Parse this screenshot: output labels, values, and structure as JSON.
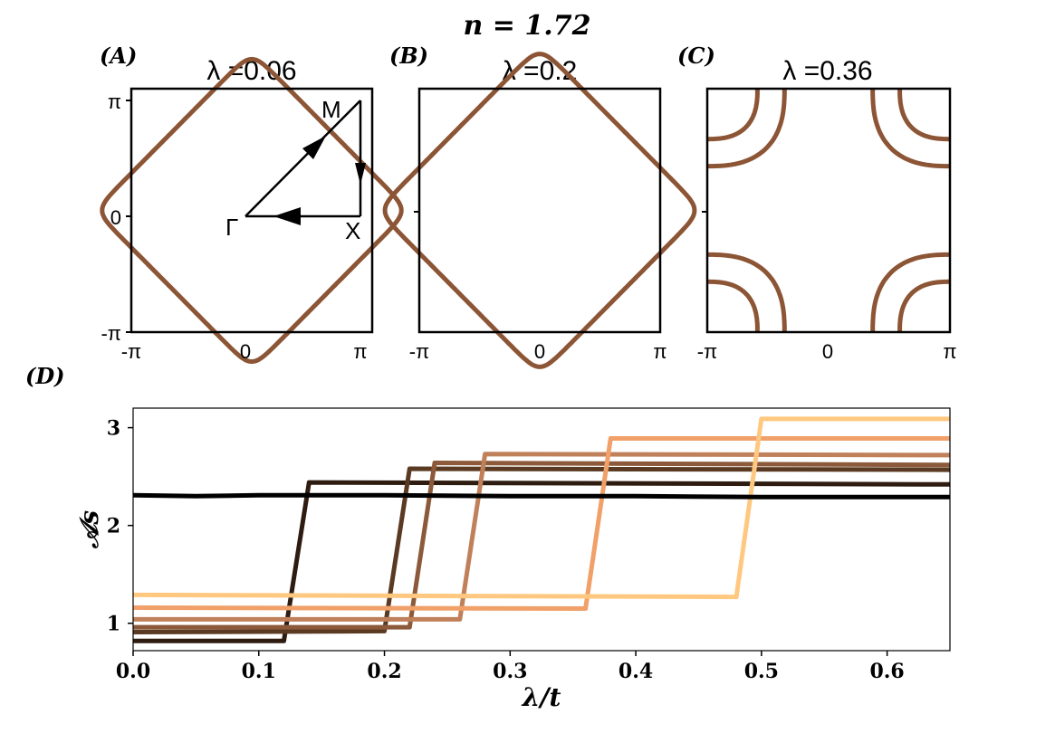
{
  "figure": {
    "suptitle": "n = 1.72",
    "panel_labels": [
      "(A)",
      "(B)",
      "(C)",
      "(D)"
    ]
  },
  "fermi_panels": [
    {
      "title": "λ =0.06",
      "xticks": [
        "-π",
        "0",
        "π"
      ],
      "yticks": [
        "π",
        "0",
        "-π"
      ],
      "path_labels": {
        "M": "M",
        "Gamma": "Γ",
        "X": "X"
      }
    },
    {
      "title": "λ =0.2",
      "xticks": [
        "-π",
        "0",
        "π"
      ]
    },
    {
      "title": "λ =0.36",
      "xticks": [
        "-π",
        "0",
        "π"
      ]
    }
  ],
  "colors": {
    "fermi_surface": "#8c5535",
    "series": [
      "#000000",
      "#2e1c10",
      "#5a3a22",
      "#8c5a3a",
      "#c0805a",
      "#f0a068",
      "#ffc880"
    ]
  },
  "chart_data": [
    {
      "type": "line",
      "panel": "(A)",
      "title": "λ =0.06",
      "xlim": [
        -3.1416,
        3.1416
      ],
      "ylim": [
        -3.1416,
        3.1416
      ],
      "description_values": {
        "fermi_surface_vertex": 2.9
      },
      "path": [
        {
          "label": "Γ",
          "x": 0,
          "y": 0
        },
        {
          "label": "X",
          "x": 3.1416,
          "y": 0
        },
        {
          "label": "M",
          "x": 3.1416,
          "y": 3.1416
        }
      ]
    },
    {
      "type": "line",
      "panel": "(B)",
      "title": "λ =0.2",
      "xlim": [
        -3.1416,
        3.1416
      ],
      "ylim": [
        -3.1416,
        3.1416
      ],
      "description_values": {
        "fermi_surface_vertex": 3.0
      }
    },
    {
      "type": "line",
      "panel": "(C)",
      "title": "λ =0.36",
      "xlim": [
        -3.1416,
        3.1416
      ],
      "ylim": [
        -3.1416,
        3.1416
      ],
      "description_values": {
        "inner_arc_corner": 1.3,
        "outer_arc_corner": 2.0
      }
    },
    {
      "type": "line",
      "panel": "(D)",
      "xlabel": "λ/t",
      "ylabel": "𝒜s",
      "xlim": [
        0,
        0.65
      ],
      "ylim": [
        0.72,
        3.2
      ],
      "xticks": [
        "0.0",
        "0.1",
        "0.2",
        "0.3",
        "0.4",
        "0.5",
        "0.6"
      ],
      "yticks": [
        "1",
        "2",
        "3"
      ],
      "series": [
        {
          "values": {
            "x": [
              0,
              0.05,
              0.1,
              0.2,
              0.3,
              0.4,
              0.5,
              0.6,
              0.65
            ],
            "y": [
              2.31,
              2.3,
              2.31,
              2.31,
              2.3,
              2.3,
              2.29,
              2.29,
              2.29
            ]
          }
        },
        {
          "values": {
            "x": [
              0,
              0.12,
              0.14,
              0.65
            ],
            "y": [
              0.82,
              0.82,
              2.44,
              2.42
            ]
          }
        },
        {
          "values": {
            "x": [
              0,
              0.2,
              0.22,
              0.65
            ],
            "y": [
              0.91,
              0.92,
              2.58,
              2.57
            ]
          }
        },
        {
          "values": {
            "x": [
              0,
              0.22,
              0.24,
              0.65
            ],
            "y": [
              0.96,
              0.96,
              2.64,
              2.62
            ]
          }
        },
        {
          "values": {
            "x": [
              0,
              0.26,
              0.28,
              0.65
            ],
            "y": [
              1.04,
              1.04,
              2.73,
              2.72
            ]
          }
        },
        {
          "values": {
            "x": [
              0,
              0.36,
              0.38,
              0.65
            ],
            "y": [
              1.16,
              1.15,
              2.89,
              2.89
            ]
          }
        },
        {
          "values": {
            "x": [
              0,
              0.48,
              0.5,
              0.65
            ],
            "y": [
              1.29,
              1.27,
              3.09,
              3.09
            ]
          }
        }
      ]
    }
  ]
}
